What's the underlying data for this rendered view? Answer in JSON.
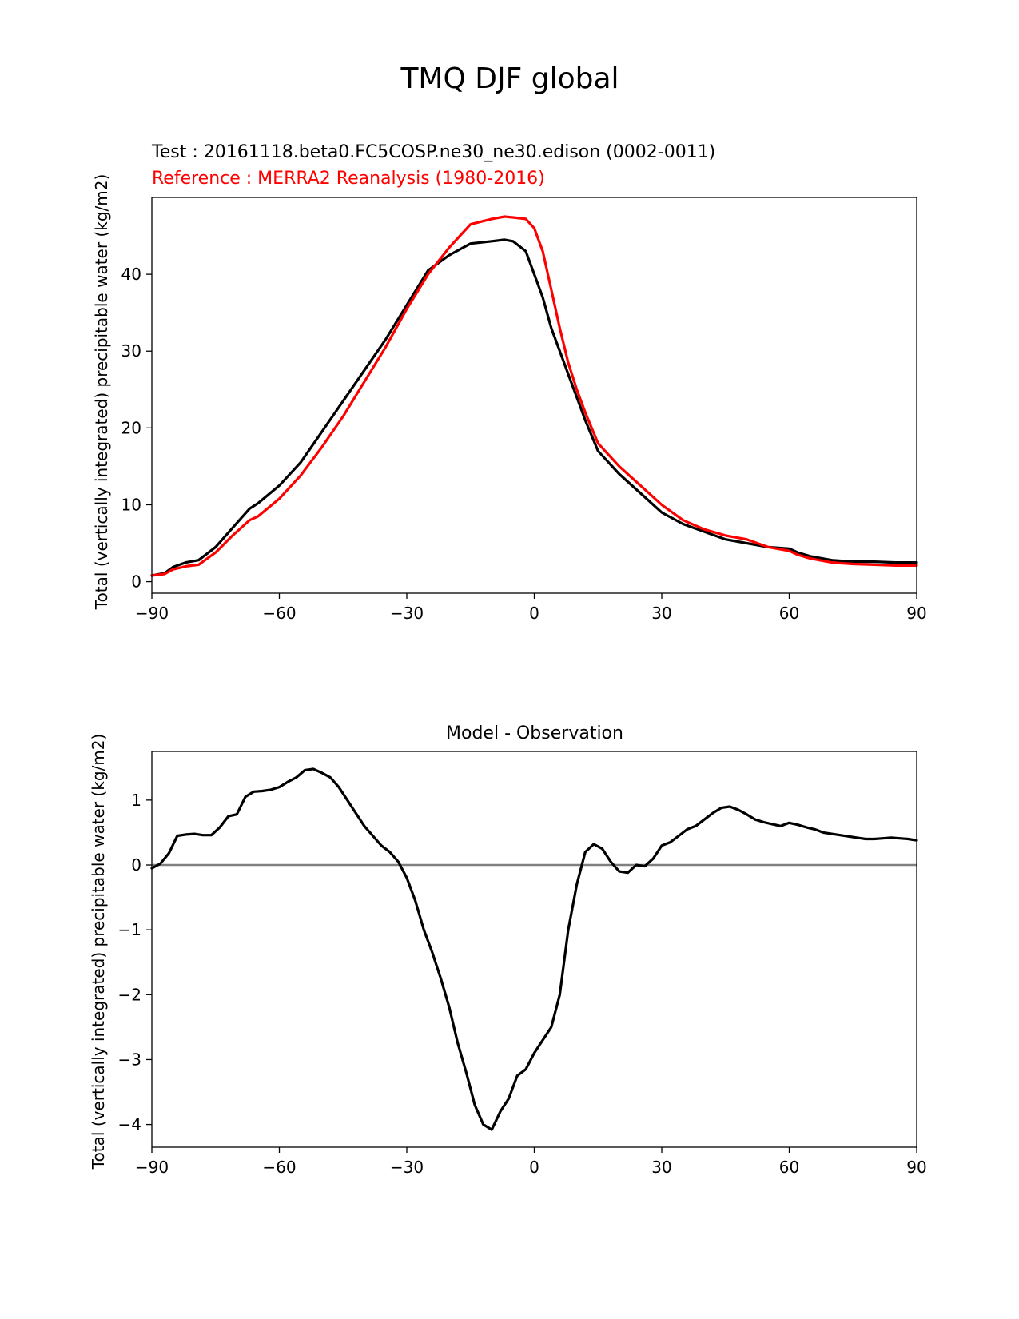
{
  "suptitle": "TMQ DJF global",
  "chart_data": [
    {
      "type": "line",
      "test_label": "Test : 20161118.beta0.FC5COSP.ne30_ne30.edison (0002-0011)",
      "reference_label": "Reference : MERRA2 Reanalysis (1980-2016)",
      "title": "",
      "xlabel": "",
      "ylabel": "Total (vertically integrated) precipitable water (kg/m2)",
      "xlim": [
        -90,
        90
      ],
      "ylim": [
        -1.5,
        50
      ],
      "xticks": [
        -90,
        -60,
        -30,
        0,
        30,
        60,
        90
      ],
      "xtick_labels": [
        "−90",
        "−60",
        "−30",
        "0",
        "30",
        "60",
        "90"
      ],
      "yticks": [
        0,
        10,
        20,
        30,
        40
      ],
      "ytick_labels": [
        "0",
        "10",
        "20",
        "30",
        "40"
      ],
      "series": [
        {
          "name": "Test",
          "color": "#000000",
          "x": [
            -90,
            -87,
            -85,
            -82,
            -79,
            -75,
            -71,
            -67,
            -65,
            -60,
            -55,
            -50,
            -45,
            -40,
            -35,
            -30,
            -25,
            -20,
            -15,
            -10,
            -7,
            -5,
            -2,
            0,
            2,
            4,
            6,
            8,
            10,
            12,
            15,
            20,
            25,
            30,
            35,
            40,
            45,
            50,
            55,
            60,
            62,
            65,
            70,
            75,
            80,
            85,
            90
          ],
          "y": [
            0.8,
            1.1,
            1.9,
            2.5,
            2.8,
            4.5,
            7.0,
            9.5,
            10.2,
            12.5,
            15.5,
            19.5,
            23.5,
            27.5,
            31.5,
            36.0,
            40.5,
            42.5,
            44.0,
            44.3,
            44.5,
            44.3,
            43.0,
            40.0,
            37.0,
            33.0,
            30.0,
            27.0,
            24.0,
            21.0,
            17.0,
            14.0,
            11.5,
            9.0,
            7.5,
            6.5,
            5.5,
            5.0,
            4.5,
            4.3,
            3.8,
            3.3,
            2.8,
            2.6,
            2.6,
            2.5,
            2.5
          ]
        },
        {
          "name": "Reference",
          "color": "#ff0000",
          "x": [
            -90,
            -87,
            -85,
            -82,
            -79,
            -75,
            -71,
            -67,
            -65,
            -60,
            -55,
            -50,
            -45,
            -40,
            -35,
            -30,
            -25,
            -20,
            -15,
            -10,
            -7,
            -5,
            -2,
            0,
            2,
            4,
            6,
            8,
            10,
            12,
            15,
            20,
            25,
            30,
            35,
            40,
            45,
            50,
            55,
            60,
            62,
            65,
            70,
            75,
            80,
            85,
            90
          ],
          "y": [
            0.8,
            1.0,
            1.6,
            2.0,
            2.2,
            3.8,
            6.0,
            8.0,
            8.5,
            10.8,
            13.8,
            17.5,
            21.5,
            26.0,
            30.5,
            35.5,
            40.0,
            43.5,
            46.5,
            47.2,
            47.5,
            47.4,
            47.2,
            46.0,
            43.0,
            38.0,
            33.0,
            28.5,
            25.0,
            22.0,
            18.0,
            15.0,
            12.5,
            10.0,
            8.0,
            6.8,
            6.0,
            5.5,
            4.5,
            4.0,
            3.5,
            3.0,
            2.5,
            2.3,
            2.2,
            2.1,
            2.1
          ]
        }
      ]
    },
    {
      "type": "line",
      "title": "Model - Observation",
      "xlabel": "",
      "ylabel": "Total (vertically integrated) precipitable water (kg/m2)",
      "xlim": [
        -90,
        90
      ],
      "ylim": [
        -4.35,
        1.75
      ],
      "xticks": [
        -90,
        -60,
        -30,
        0,
        30,
        60,
        90
      ],
      "xtick_labels": [
        "−90",
        "−60",
        "−30",
        "0",
        "30",
        "60",
        "90"
      ],
      "yticks": [
        -4,
        -3,
        -2,
        -1,
        0,
        1
      ],
      "ytick_labels": [
        "−4",
        "−3",
        "−2",
        "−1",
        "0",
        "1"
      ],
      "zero_line_color": "#808080",
      "series": [
        {
          "name": "Model - Observation",
          "color": "#000000",
          "x": [
            -90,
            -88,
            -86,
            -84,
            -82,
            -80,
            -78,
            -76,
            -74,
            -72,
            -70,
            -68,
            -66,
            -64,
            -62,
            -60,
            -58,
            -56,
            -54,
            -52,
            -50,
            -48,
            -46,
            -44,
            -42,
            -40,
            -38,
            -36,
            -34,
            -32,
            -30,
            -28,
            -26,
            -24,
            -22,
            -20,
            -18,
            -16,
            -14,
            -12,
            -10,
            -8,
            -6,
            -4,
            -2,
            0,
            2,
            4,
            6,
            8,
            10,
            12,
            14,
            16,
            18,
            20,
            22,
            24,
            26,
            28,
            30,
            32,
            34,
            36,
            38,
            40,
            42,
            44,
            46,
            48,
            50,
            52,
            54,
            56,
            58,
            60,
            62,
            64,
            66,
            68,
            70,
            72,
            74,
            76,
            78,
            80,
            82,
            84,
            86,
            88,
            90
          ],
          "y": [
            -0.05,
            0.02,
            0.18,
            0.45,
            0.47,
            0.48,
            0.46,
            0.46,
            0.58,
            0.75,
            0.78,
            1.05,
            1.13,
            1.14,
            1.16,
            1.2,
            1.28,
            1.35,
            1.46,
            1.48,
            1.42,
            1.35,
            1.2,
            1.0,
            0.8,
            0.6,
            0.45,
            0.3,
            0.2,
            0.05,
            -0.2,
            -0.55,
            -1.0,
            -1.35,
            -1.75,
            -2.2,
            -2.75,
            -3.2,
            -3.7,
            -4.0,
            -4.08,
            -3.8,
            -3.6,
            -3.25,
            -3.15,
            -2.9,
            -2.7,
            -2.5,
            -2.0,
            -1.0,
            -0.3,
            0.2,
            0.32,
            0.25,
            0.05,
            -0.1,
            -0.12,
            0.0,
            -0.02,
            0.1,
            0.3,
            0.35,
            0.45,
            0.55,
            0.6,
            0.7,
            0.8,
            0.88,
            0.9,
            0.85,
            0.78,
            0.7,
            0.66,
            0.63,
            0.6,
            0.65,
            0.62,
            0.58,
            0.55,
            0.5,
            0.48,
            0.46,
            0.44,
            0.42,
            0.4,
            0.4,
            0.41,
            0.42,
            0.41,
            0.4,
            0.38
          ]
        }
      ]
    }
  ]
}
